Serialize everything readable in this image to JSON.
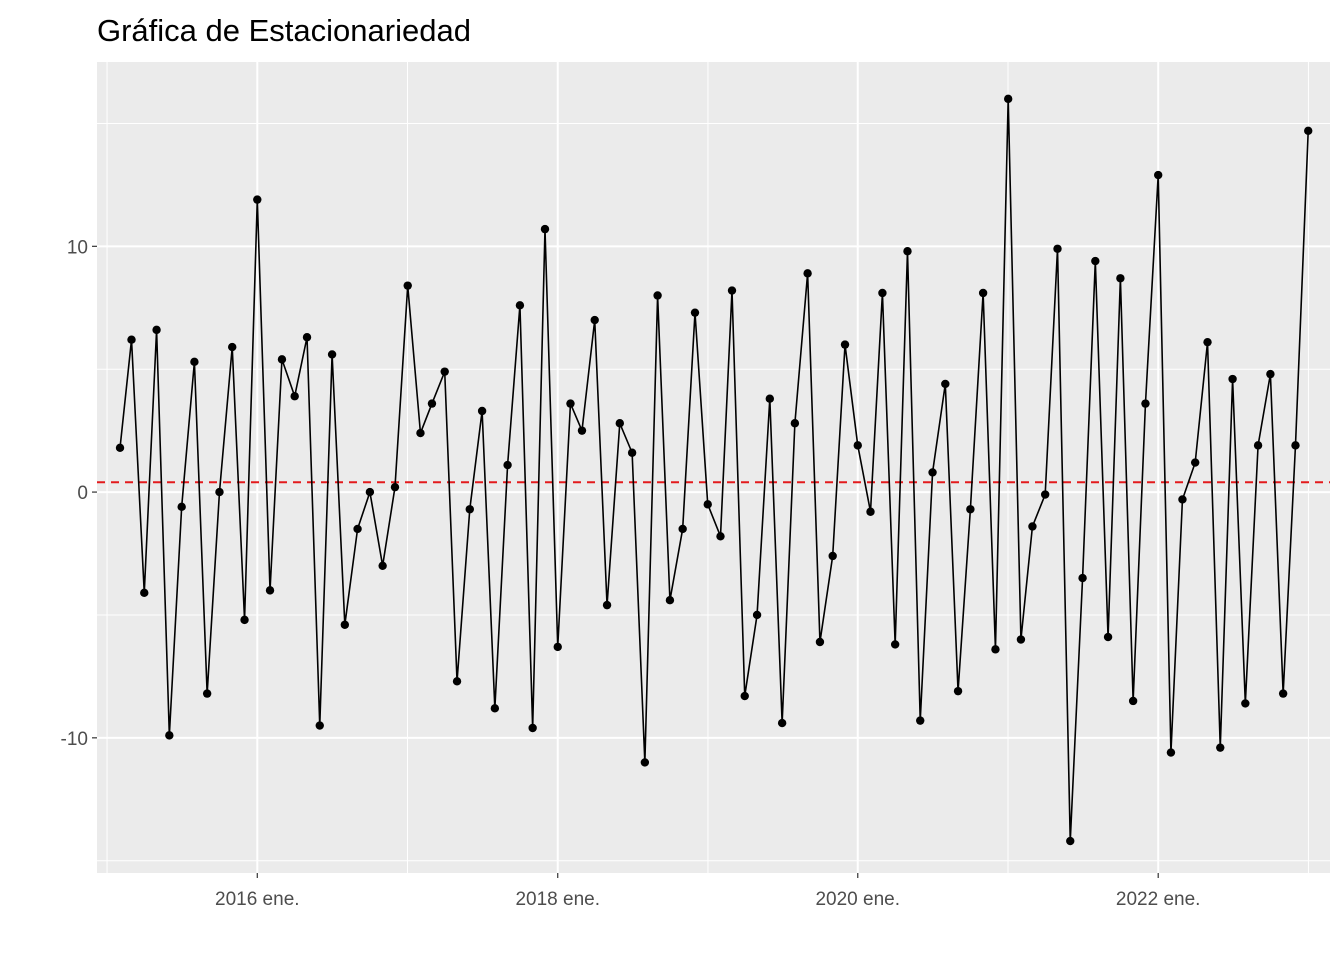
{
  "chart_data": {
    "type": "line",
    "title": "Gráfica de Estacionariedad",
    "xlabel": "",
    "ylabel": "",
    "x_start": "2015-02",
    "x_frequency": "monthly",
    "xlim": [
      "2014-12-07",
      "2023-02-23"
    ],
    "ylim": [
      -15.5,
      17.5
    ],
    "x_breaks": [
      "2016-01",
      "2018-01",
      "2020-01",
      "2022-01"
    ],
    "x_tick_labels": [
      "2016 ene.",
      "2018 ene.",
      "2020 ene.",
      "2022 ene."
    ],
    "y_ticks": [
      -10,
      0,
      10
    ],
    "y_tick_labels": [
      "-10",
      "0",
      "10"
    ],
    "reference_line": {
      "y": 0.4,
      "color": "#e31a1c",
      "style": "dashed"
    },
    "grid": true,
    "panel_background": "#ebebeb",
    "series": [
      {
        "color": "#000000",
        "marker": "circle",
        "values": [
          1.8,
          6.2,
          -4.1,
          6.6,
          -9.9,
          -0.6,
          5.3,
          -8.2,
          0.0,
          5.9,
          -5.2,
          11.9,
          -4.0,
          5.4,
          3.9,
          6.3,
          -9.5,
          5.6,
          -5.4,
          -1.5,
          0.0,
          -3.0,
          0.2,
          8.4,
          2.4,
          3.6,
          4.9,
          -7.7,
          -0.7,
          3.3,
          -8.8,
          1.1,
          7.6,
          -9.6,
          10.7,
          -6.3,
          3.6,
          2.5,
          7.0,
          -4.6,
          2.8,
          1.6,
          -11.0,
          8.0,
          -4.4,
          -1.5,
          7.3,
          -0.5,
          -1.8,
          8.2,
          -8.3,
          -5.0,
          3.8,
          -9.4,
          2.8,
          8.9,
          -6.1,
          -2.6,
          6.0,
          1.9,
          -0.8,
          8.1,
          -6.2,
          9.8,
          -9.3,
          0.8,
          4.4,
          -8.1,
          -0.7,
          8.1,
          -6.4,
          16.0,
          -6.0,
          -1.4,
          -0.1,
          9.9,
          -14.2,
          -3.5,
          9.4,
          -5.9,
          8.7,
          -8.5,
          3.6,
          12.9,
          -10.6,
          -0.3,
          1.2,
          6.1,
          -10.4,
          4.6,
          -8.6,
          1.9,
          4.8,
          -8.2,
          1.9,
          14.7
        ]
      }
    ]
  }
}
